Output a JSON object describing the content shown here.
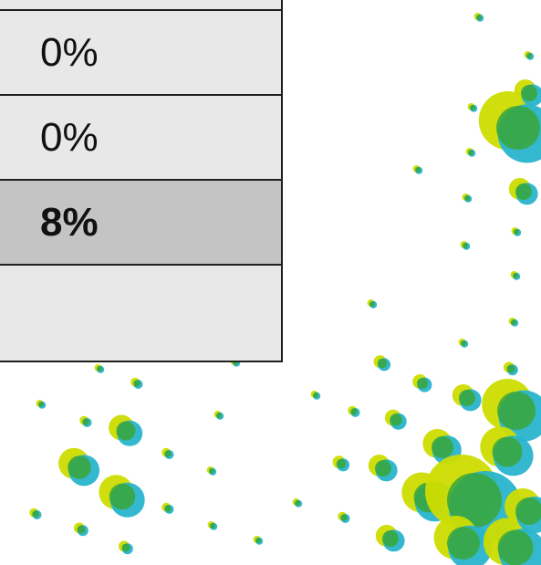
{
  "list": {
    "rows": [
      {
        "label": "0%",
        "selected": false
      },
      {
        "label": "0%",
        "selected": false
      },
      {
        "label": "8%",
        "selected": true
      },
      {
        "label": "",
        "selected": false
      }
    ]
  },
  "colors": {
    "panel_bg": "#e8e8e8",
    "selected_bg": "#c4c4c4",
    "border": "#1f1f1f",
    "dot_teal": "#28b4cc",
    "dot_yellow": "#cfdc00",
    "dot_green": "#3aa63a"
  },
  "icons": {
    "background": "confetti-dots-pattern"
  }
}
